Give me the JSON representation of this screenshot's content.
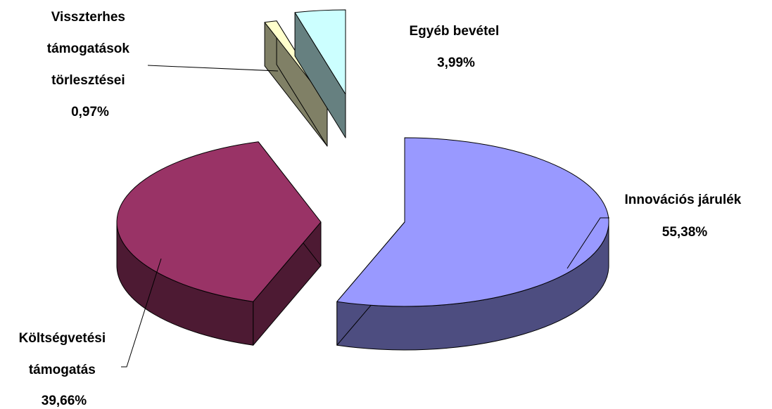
{
  "chart_data": {
    "type": "pie",
    "title": "",
    "three_d": true,
    "exploded": true,
    "slices": [
      {
        "name": "Innovációs járulék",
        "value": 55.38,
        "value_label": "55,38%",
        "color": "#9999ff",
        "side_color": "#4d4d80"
      },
      {
        "name": "Költségvetési támogatás",
        "value": 39.66,
        "value_label": "39,66%",
        "color": "#993366",
        "side_color": "#4d1a33"
      },
      {
        "name": "Visszterhes támogatások törlesztései",
        "value": 0.97,
        "value_label": "0,97%",
        "color": "#ffffcc",
        "side_color": "#808066"
      },
      {
        "name": "Egyéb bevétel",
        "value": 3.99,
        "value_label": "3,99%",
        "color": "#ccffff",
        "side_color": "#668080"
      }
    ],
    "labels": {
      "innovacios": [
        "Innovációs járulék",
        "55,38%"
      ],
      "koltsegvetesi": [
        "Költségvetési",
        "támogatás",
        "39,66%"
      ],
      "visszterhes": [
        "Visszterhes",
        "támogatások",
        "törlesztései",
        "0,97%"
      ],
      "egyeb": [
        "Egyéb bevétel",
        "3,99%"
      ]
    }
  }
}
